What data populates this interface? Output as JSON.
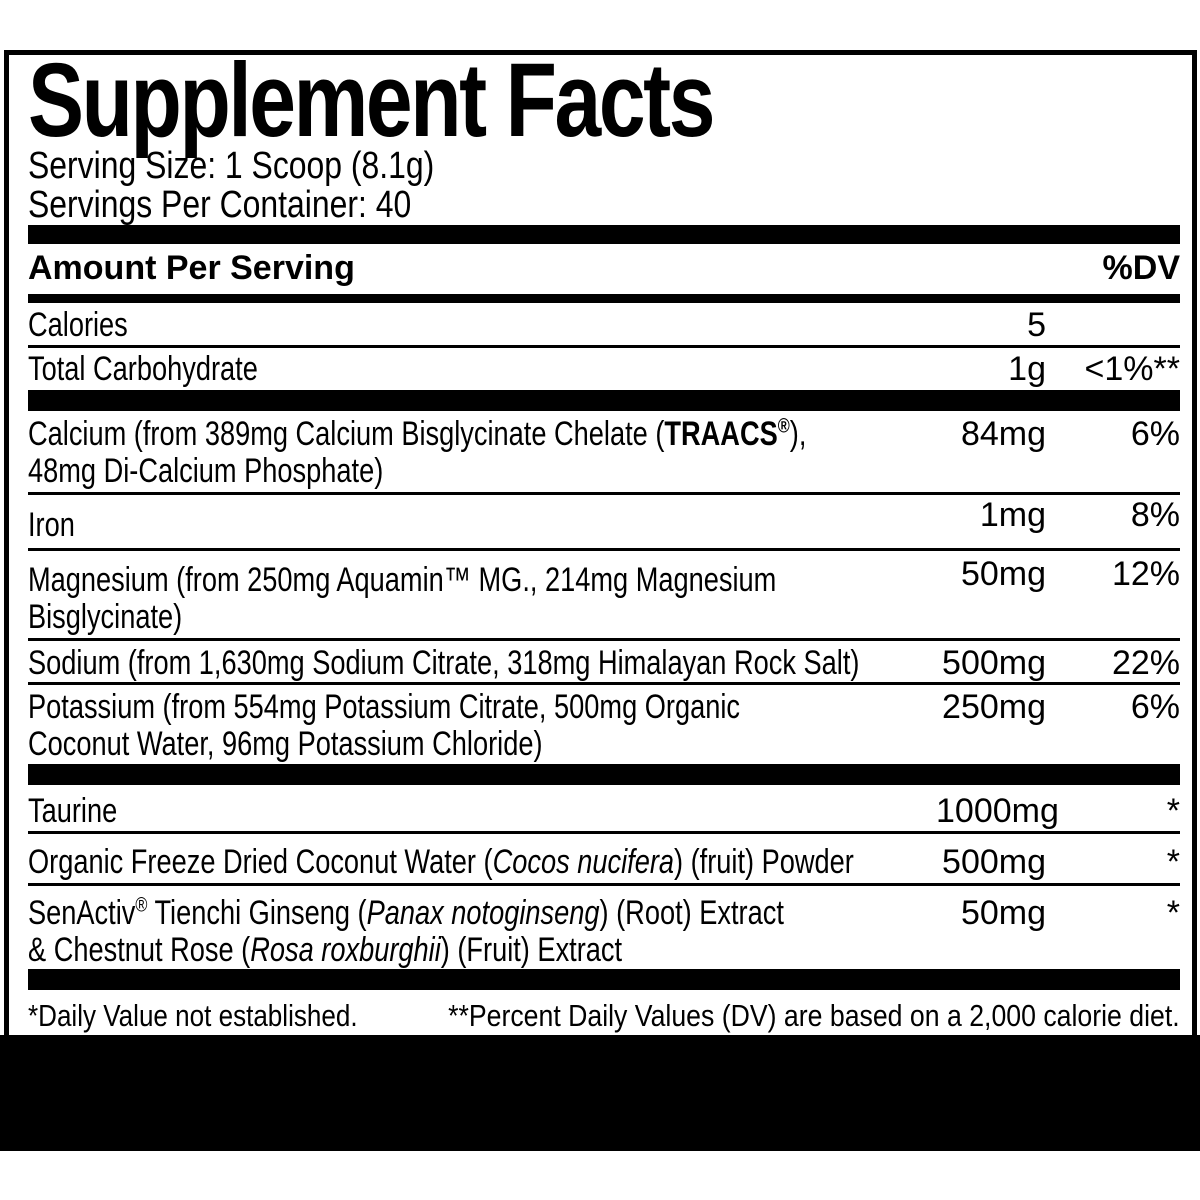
{
  "title": "Supplement Facts",
  "serving": {
    "size": "Serving Size: 1 Scoop (8.1g)",
    "per_container": "Servings Per Container: 40"
  },
  "header": {
    "amount_label": "Amount Per Serving",
    "dv_label": "%DV"
  },
  "table": {
    "rows": [
      {
        "name": "calories",
        "lines": [
          [
            {
              "t": "Calories"
            }
          ]
        ],
        "amount": "5",
        "dv": "",
        "sep": "thin"
      },
      {
        "name": "total-carbohydrate",
        "lines": [
          [
            {
              "t": "Total Carbohydrate"
            }
          ]
        ],
        "amount": "1g",
        "dv": "<1%**",
        "sep": "bar"
      },
      {
        "name": "calcium",
        "lines": [
          [
            {
              "t": "Calcium (from 389mg Calcium Bisglycinate Chelate ("
            },
            {
              "t": "TRAACS",
              "f": "b"
            },
            {
              "t": "®",
              "f": "b sup"
            },
            {
              "t": "),"
            }
          ],
          [
            {
              "t": "48mg Di-Calcium Phosphate)"
            }
          ]
        ],
        "amount": "84mg",
        "dv": "6%",
        "sep": "thin"
      },
      {
        "name": "iron",
        "lines": [
          [
            {
              "t": "Iron"
            }
          ]
        ],
        "amount": "1mg",
        "dv": "8%",
        "sep": "thin"
      },
      {
        "name": "magnesium",
        "lines": [
          [
            {
              "t": "Magnesium (from 250mg Aquamin™ MG., 214mg Magnesium"
            }
          ],
          [
            {
              "t": "Bisglycinate)"
            }
          ]
        ],
        "amount": "50mg",
        "dv": "12%",
        "sep": "thin"
      },
      {
        "name": "sodium",
        "lines": [
          [
            {
              "t": "Sodium (from 1,630mg Sodium Citrate, 318mg Himalayan Rock Salt)"
            }
          ]
        ],
        "amount": "500mg",
        "dv": "22%",
        "sep": "thin"
      },
      {
        "name": "potassium",
        "lines": [
          [
            {
              "t": "Potassium (from 554mg Potassium Citrate, 500mg Organic"
            }
          ],
          [
            {
              "t": "Coconut Water, 96mg Potassium Chloride)"
            }
          ]
        ],
        "amount": "250mg",
        "dv": "6%",
        "sep": "bar"
      },
      {
        "name": "taurine",
        "lines": [
          [
            {
              "t": "Taurine"
            }
          ]
        ],
        "amount": "1000mg",
        "dv": "*",
        "sep": "thin"
      },
      {
        "name": "coconut-water",
        "lines": [
          [
            {
              "t": "Organic Freeze Dried Coconut Water ("
            },
            {
              "t": "Cocos nucifera",
              "f": "i"
            },
            {
              "t": ") (fruit) Powder"
            }
          ]
        ],
        "amount": "500mg",
        "dv": "*",
        "sep": "thin"
      },
      {
        "name": "senactiv",
        "lines": [
          [
            {
              "t": "SenActiv"
            },
            {
              "t": "®",
              "f": "sup"
            },
            {
              "t": " Tienchi Ginseng ("
            },
            {
              "t": "Panax notoginseng",
              "f": "i"
            },
            {
              "t": ") (Root) Extract"
            }
          ],
          [
            {
              "t": "& Chestnut Rose ("
            },
            {
              "t": "Rosa roxburghii",
              "f": "i"
            },
            {
              "t": ") (Fruit) Extract"
            }
          ]
        ],
        "amount": "50mg",
        "dv": "*",
        "sep": "bar"
      }
    ]
  },
  "footnote": {
    "left": "*Daily Value not established.",
    "right": "**Percent Daily Values (DV) are based on a 2,000 calorie diet."
  },
  "colors": {
    "ink": "#000000",
    "background": "#ffffff"
  }
}
